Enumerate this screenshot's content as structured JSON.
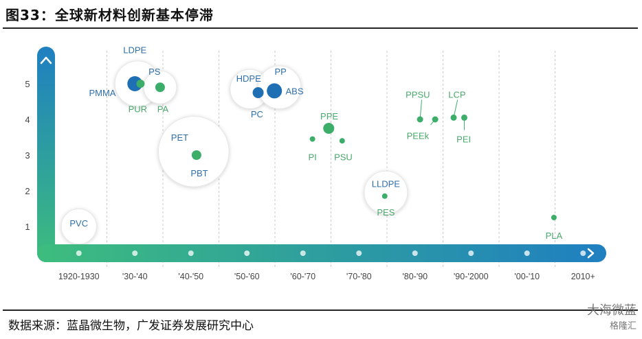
{
  "title": "图33：全球新材料创新基本停滞",
  "source": "数据来源：蓝晶微生物，广发证券发展研究中心",
  "watermark": {
    "line1": "大海微蓝",
    "line2": "格隆汇"
  },
  "colors": {
    "axis_start": "#3dbd7d",
    "axis_end": "#1f7fc1",
    "dot_green": "#3dae6a",
    "dot_blue": "#1f6fb5",
    "label_green": "#4aa86c",
    "label_blue": "#2f6fa8",
    "grid": "#c8c8c8"
  },
  "chart_data": {
    "type": "scatter",
    "title": "",
    "xlabel": "",
    "ylabel": "",
    "categories": [
      "1920-1930",
      "'30-'40",
      "'40-'50",
      "'50-'60",
      "'60-'70",
      "'70-'80",
      "'80-'90",
      "'90-'2000",
      "'00-'10",
      "2010+"
    ],
    "y_ticks": [
      1,
      2,
      3,
      4,
      5
    ],
    "ylim": [
      0,
      5.8
    ],
    "grid": "vertical dashed",
    "points": [
      {
        "label": "PVC",
        "era": 0,
        "x": 0.5,
        "y": 1.0,
        "size": 0,
        "color": "blue"
      },
      {
        "label": "PMMA",
        "era": 1,
        "x": 1.5,
        "y": 5.0,
        "size": 11,
        "color": "blue"
      },
      {
        "label": "PUR",
        "era": 1,
        "x": 1.6,
        "y": 5.0,
        "size": 6,
        "color": "green"
      },
      {
        "label": "PA",
        "era": 1,
        "x": 1.95,
        "y": 4.9,
        "size": 7,
        "color": "green"
      },
      {
        "label": "PET",
        "era": 2,
        "x": 2.6,
        "y": 3.0,
        "size": 7,
        "color": "green"
      },
      {
        "label": "PC",
        "era": 3,
        "x": 3.7,
        "y": 4.75,
        "size": 8,
        "color": "blue"
      },
      {
        "label": "ABS",
        "era": 3,
        "x": 3.99,
        "y": 4.8,
        "size": 11,
        "color": "blue"
      },
      {
        "label": "PPE",
        "era": 4,
        "x": 4.96,
        "y": 3.75,
        "size": 8,
        "color": "green"
      },
      {
        "label": "PI",
        "era": 4,
        "x": 4.67,
        "y": 3.45,
        "size": 4,
        "color": "green"
      },
      {
        "label": "PSU",
        "era": 4,
        "x": 5.2,
        "y": 3.4,
        "size": 4,
        "color": "green"
      },
      {
        "label": "LLDPE",
        "era": 5,
        "x": 5.96,
        "y": 1.85,
        "size": 4,
        "color": "green"
      },
      {
        "label": "PPSU",
        "era": 6,
        "x": 6.59,
        "y": 4.0,
        "size": 4.5,
        "color": "green"
      },
      {
        "label": "PEEk",
        "era": 6,
        "x": 6.86,
        "y": 4.0,
        "size": 4.5,
        "color": "green"
      },
      {
        "label": "LCP",
        "era": 7,
        "x": 7.19,
        "y": 4.05,
        "size": 4.5,
        "color": "green"
      },
      {
        "label": "PEI",
        "era": 7,
        "x": 7.38,
        "y": 4.05,
        "size": 4.5,
        "color": "green"
      },
      {
        "label": "PLA",
        "era": 8,
        "x": 8.98,
        "y": 1.25,
        "size": 4,
        "color": "green"
      }
    ],
    "labels": [
      {
        "text": "PVC",
        "x": 0.5,
        "y": 1.1,
        "color": "blue"
      },
      {
        "text": "LDPE",
        "x": 1.5,
        "y": 5.95,
        "color": "blue"
      },
      {
        "text": "PS",
        "x": 1.85,
        "y": 5.35,
        "color": "blue"
      },
      {
        "text": "PMMA",
        "x": 0.92,
        "y": 4.75,
        "color": "blue"
      },
      {
        "text": "PUR",
        "x": 1.55,
        "y": 4.3,
        "color": "green"
      },
      {
        "text": "PA",
        "x": 2.0,
        "y": 4.3,
        "color": "green"
      },
      {
        "text": "PET",
        "x": 2.3,
        "y": 3.5,
        "color": "blue"
      },
      {
        "text": "PBT",
        "x": 2.65,
        "y": 2.5,
        "color": "blue"
      },
      {
        "text": "HDPE",
        "x": 3.53,
        "y": 5.15,
        "color": "blue"
      },
      {
        "text": "PP",
        "x": 4.1,
        "y": 5.35,
        "color": "blue"
      },
      {
        "text": "ABS",
        "x": 4.35,
        "y": 4.8,
        "color": "blue"
      },
      {
        "text": "PC",
        "x": 3.68,
        "y": 4.15,
        "color": "blue"
      },
      {
        "text": "PPE",
        "x": 4.97,
        "y": 4.1,
        "color": "green"
      },
      {
        "text": "PI",
        "x": 4.67,
        "y": 2.95,
        "color": "green"
      },
      {
        "text": "PSU",
        "x": 5.22,
        "y": 2.95,
        "color": "green"
      },
      {
        "text": "LLDPE",
        "x": 5.98,
        "y": 2.2,
        "color": "blue"
      },
      {
        "text": "PES",
        "x": 5.98,
        "y": 1.4,
        "color": "green"
      },
      {
        "text": "PPSU",
        "x": 6.55,
        "y": 4.7,
        "color": "green"
      },
      {
        "text": "PEEk",
        "x": 6.55,
        "y": 3.55,
        "color": "green"
      },
      {
        "text": "LCP",
        "x": 7.25,
        "y": 4.7,
        "color": "green"
      },
      {
        "text": "PEI",
        "x": 7.37,
        "y": 3.45,
        "color": "green"
      },
      {
        "text": "PLA",
        "x": 8.98,
        "y": 0.75,
        "color": "green"
      }
    ],
    "bubbles": [
      {
        "x": 0.5,
        "y": 1.0,
        "r": 0.45
      },
      {
        "x": 1.55,
        "y": 5.0,
        "r": 0.58
      },
      {
        "x": 1.95,
        "y": 4.9,
        "r": 0.42
      },
      {
        "x": 2.55,
        "y": 3.1,
        "r": 0.9
      },
      {
        "x": 3.55,
        "y": 4.85,
        "r": 0.5
      },
      {
        "x": 4.08,
        "y": 4.9,
        "r": 0.55
      },
      {
        "x": 5.98,
        "y": 1.95,
        "r": 0.55
      }
    ]
  }
}
